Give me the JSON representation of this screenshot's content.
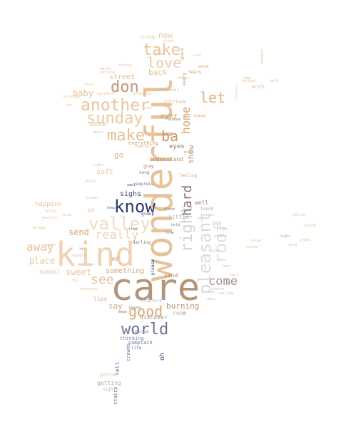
{
  "colors": {
    "tan": "#e8c49a",
    "peach": "#f0d6b8",
    "brown": "#b89478",
    "sienna": "#d9a878",
    "navy": "#2c3a6e",
    "slate": "#6b7390",
    "grey": "#c8c8c8",
    "blue": "#5b7bb0",
    "gold": "#d8a85a"
  },
  "words": {
    "wonderful": "wonderful",
    "care": "care",
    "kind": "kind",
    "pleasant": "pleasant",
    "know": "know",
    "valley": "valley",
    "world": "world",
    "good": "good",
    "right": "right",
    "hard": "hard",
    "roof": "roof",
    "another": "another",
    "sunday": "sunday",
    "make": "make",
    "take": "take",
    "love": "love",
    "don": "don",
    "let": "let",
    "home": "home",
    "ba": "ba",
    "show": "show",
    "see": "see",
    "really": "really",
    "away": "away",
    "come": "come",
    "send": "send",
    "sweet": "sweet",
    "place": "place",
    "something": "something",
    "say": "say",
    "burning": "burning",
    "baby": "baby",
    "street": "street",
    "back": "back",
    "now": "now",
    "seem": "seem",
    "ever": "ever",
    "eyes": "eyes",
    "understand": "understand",
    "soft": "soft",
    "go": "go",
    "everything": "everything",
    "sighs": "sighs",
    "happens": "happens",
    "little": "little",
    "well": "well",
    "land": "land",
    "room": "room",
    "discover": "discover",
    "lips": "lips",
    "symbol": "symbol",
    "tell": "tell",
    "getting": "getting",
    "thinking": "thinking",
    "complain": "complain",
    "oh": "oh",
    "crowds": "crowds",
    "stairs": "stairs",
    "nights": "nights",
    "gotta": "gotta",
    "song": "song",
    "express": "express",
    "group": "group",
    "darling": "darling",
    "gray": "gray",
    "feeling": "feeling",
    "mr": "mr",
    "much": "much",
    "ye": "ye",
    "may": "may",
    "tears": "tears",
    "warm": "warm",
    "touch": "touch",
    "drift": "drift",
    "cloudy": "cloudy",
    "space": "space",
    "please": "please",
    "creature": "creature",
    "together": "together",
    "rainbow": "rainbow",
    "change": "change",
    "mine": "mine",
    "tenderness": "tenderness",
    "starts": "starts",
    "seeing": "seeing",
    "look": "look",
    "every": "every",
    "chance": "chance",
    "rest": "rest",
    "cause": "cause",
    "dreams": "dreams",
    "soul": "soul",
    "keep": "keep",
    "square": "square",
    "days": "days",
    "stars": "stars",
    "smile": "smile",
    "heart": "heart",
    "tonight": "tonight",
    "through": "through",
    "yellow": "yellow",
    "blue": "blue",
    "bridge": "bridge",
    "young": "young",
    "old": "old",
    "wish": "wish",
    "walk": "walk",
    "friend": "friend",
    "sky": "sky",
    "everyone": "everyone",
    "mean": "mean",
    "leaves": "leaves",
    "hear": "hear",
    "rain": "rain",
    "begin": "begin",
    "peaceful": "peaceful",
    "others": "others",
    "calling": "calling",
    "know2": "known",
    "face": "face",
    "sing": "sing",
    "paradise": "paradise",
    "find": "find",
    "serenade": "serenade",
    "true": "true",
    "hope": "hope",
    "play": "play",
    "night": "night",
    "tender": "tender",
    "heaven": "heaven",
    "hold": "hold",
    "light": "light",
    "alone": "alone",
    "cloud": "cloud",
    "morning": "morning",
    "tried": "tried",
    "gone": "gone",
    "bring": "bring",
    "lite": "lite",
    "small": "small",
    "gotta2": "sing",
    "wonders": "wonders",
    "trouble": "trouble"
  }
}
